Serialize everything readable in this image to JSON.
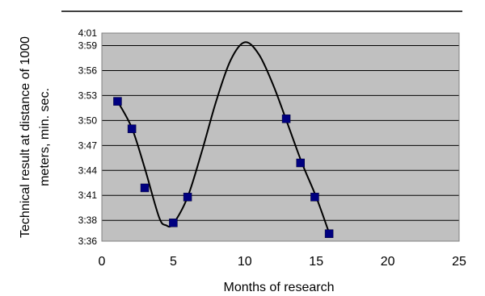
{
  "chart_data": {
    "type": "scatter",
    "title": "",
    "xlabel": "Months of research",
    "ylabel_lines": [
      "Technical result at distance of 1000",
      "meters, min. sec."
    ],
    "xlim": [
      0,
      25
    ],
    "ylim": [
      216,
      241
    ],
    "y_unit": "seconds (mm:ss)",
    "x_ticks": [
      0,
      5,
      10,
      15,
      20,
      25
    ],
    "y_tick_labels": [
      "4:01",
      "3:59",
      "3:56",
      "3:53",
      "3:50",
      "3:47",
      "3:44",
      "3:41",
      "3:38",
      "3:36"
    ],
    "y_tick_values": [
      241,
      239.5,
      236.5,
      233.5,
      230.5,
      227.5,
      224.5,
      221.5,
      218.5,
      216
    ],
    "grid": true,
    "plot_background": "#c0c0c0",
    "marker_color": "#000080",
    "series": [
      {
        "points": [
          {
            "x": 1.1,
            "y": 232.8
          },
          {
            "x": 2.1,
            "y": 229.5
          },
          {
            "x": 3.0,
            "y": 222.4
          },
          {
            "x": 5.0,
            "y": 218.2
          },
          {
            "x": 6.0,
            "y": 221.3
          },
          {
            "x": 12.9,
            "y": 230.7
          },
          {
            "x": 13.9,
            "y": 225.4
          },
          {
            "x": 14.9,
            "y": 221.3
          },
          {
            "x": 15.9,
            "y": 216.9
          }
        ]
      }
    ],
    "trend_curve": [
      [
        1.1,
        232.8
      ],
      [
        2.1,
        229.6
      ],
      [
        3.0,
        224.8
      ],
      [
        4.0,
        218.9
      ],
      [
        4.5,
        217.9
      ],
      [
        5.0,
        218.1
      ],
      [
        6.0,
        221.3
      ],
      [
        7.0,
        226.8
      ],
      [
        8.0,
        232.8
      ],
      [
        9.0,
        237.7
      ],
      [
        10.0,
        239.9
      ],
      [
        11.0,
        238.4
      ],
      [
        12.0,
        234.7
      ],
      [
        13.0,
        230.1
      ],
      [
        14.0,
        225.4
      ],
      [
        15.0,
        221.3
      ],
      [
        15.9,
        217.0
      ]
    ]
  }
}
